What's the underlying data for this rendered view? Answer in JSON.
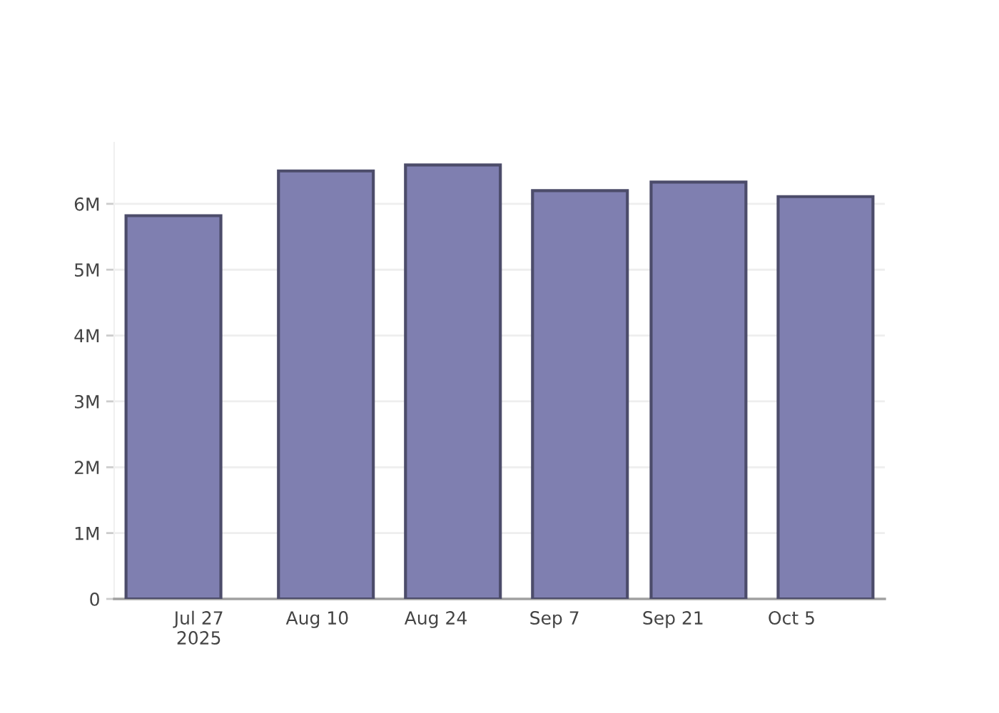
{
  "chart_data": {
    "type": "bar",
    "x": [
      "2025-07-24",
      "2025-08-11",
      "2025-08-26",
      "2025-09-10",
      "2025-09-24",
      "2025-10-09"
    ],
    "values": [
      5820000,
      6500000,
      6590000,
      6200000,
      6330000,
      6110000
    ],
    "color": "#7f7fb0",
    "xlim": [
      "2025-07-17",
      "2025-10-16"
    ],
    "xticks": [
      {
        "value": "2025-07-27",
        "label": "Jul 27\n2025"
      },
      {
        "value": "2025-08-10",
        "label": "Aug 10"
      },
      {
        "value": "2025-08-24",
        "label": "Aug 24"
      },
      {
        "value": "2025-09-07",
        "label": "Sep 7"
      },
      {
        "value": "2025-09-21",
        "label": "Sep 21"
      },
      {
        "value": "2025-10-05",
        "label": "Oct 5"
      }
    ],
    "ylim": [
      0,
      6930000
    ],
    "yticks": [
      0,
      {
        "value": 1000000,
        "label": "1M"
      },
      {
        "value": 2000000,
        "label": "2M"
      },
      {
        "value": 3000000,
        "label": "3M"
      },
      {
        "value": 4000000,
        "label": "4M"
      },
      {
        "value": 5000000,
        "label": "5M"
      },
      {
        "value": 6000000,
        "label": "6M"
      }
    ],
    "grid": "y"
  }
}
